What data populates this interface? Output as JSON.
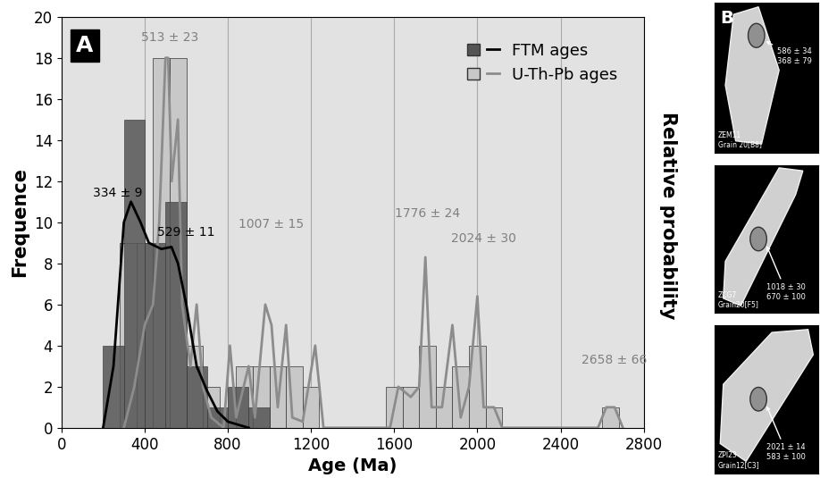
{
  "chart_data": {
    "type": "histogram",
    "panel_label": "A",
    "x_label": "Age (Ma)",
    "y_label": "Frequence",
    "y2_label": "Relative probability",
    "xlim": [
      0,
      2800
    ],
    "xticks": [
      0,
      400,
      800,
      1200,
      1600,
      2000,
      2400,
      2800
    ],
    "ylim": [
      0,
      20
    ],
    "yticks": [
      0,
      2,
      4,
      6,
      8,
      10,
      12,
      14,
      16,
      18,
      20
    ],
    "grid": "x",
    "legend": "upper right",
    "series": [
      {
        "name": "U-Th-Pb ages",
        "color": "#c8c8c8",
        "line_color": "#8c8c8c",
        "bins": [
          280,
          360,
          440,
          520,
          600,
          680,
          760,
          840,
          920,
          1000,
          1080,
          1160,
          1240,
          1320,
          1400,
          1480,
          1560,
          1640,
          1720,
          1800,
          1880,
          1960,
          2040,
          2120,
          2200,
          2280,
          2360,
          2440,
          2520,
          2600,
          2680
        ],
        "values": [
          9,
          9,
          18,
          18,
          4,
          2,
          0,
          3,
          3,
          3,
          3,
          2,
          0,
          0,
          0,
          0,
          2,
          2,
          4,
          2,
          3,
          4,
          1,
          0,
          0,
          0,
          0,
          0,
          0,
          1
        ],
        "curve": {
          "x": [
            300,
            350,
            400,
            440,
            470,
            500,
            513,
            530,
            560,
            580,
            620,
            650,
            680,
            720,
            780,
            810,
            840,
            900,
            930,
            980,
            1010,
            1040,
            1080,
            1110,
            1160,
            1220,
            1260,
            1580,
            1620,
            1680,
            1720,
            1750,
            1780,
            1830,
            1880,
            1920,
            1960,
            2000,
            2030,
            2080,
            2120,
            2580,
            2620,
            2660,
            2700
          ],
          "y": [
            0,
            2,
            5,
            6,
            10,
            18,
            18,
            12,
            15,
            6,
            3,
            6,
            2,
            0.5,
            0,
            4,
            0.5,
            3,
            0.5,
            6,
            5,
            1,
            5,
            0.5,
            0.3,
            4,
            0,
            0,
            2,
            1.5,
            2,
            8.3,
            1,
            1,
            5,
            0.5,
            2,
            6.4,
            1,
            1,
            0,
            0,
            1,
            1,
            0
          ]
        }
      },
      {
        "name": "FTM ages",
        "color": "#555555",
        "line_color": "#000000",
        "bins": [
          200,
          300,
          400,
          500,
          600,
          700,
          800,
          900,
          1000
        ],
        "values": [
          4,
          15,
          9,
          11,
          3,
          1,
          2,
          1
        ],
        "curve": {
          "x": [
            200,
            250,
            300,
            334,
            380,
            420,
            480,
            529,
            560,
            600,
            650,
            700,
            750,
            800,
            900
          ],
          "y": [
            0,
            3,
            10,
            11,
            10,
            9,
            8.7,
            8.8,
            8,
            6,
            3,
            1.8,
            0.8,
            0.3,
            0
          ]
        }
      }
    ],
    "annotations": [
      {
        "text": "334 ± 9",
        "x": 270,
        "y": 11.1,
        "color": "#000000"
      },
      {
        "text": "529 ± 11",
        "x": 600,
        "y": 9.2,
        "color": "#000000"
      },
      {
        "text": "513 ± 23",
        "x": 520,
        "y": 18.7,
        "color": "#808080"
      },
      {
        "text": "1007 ± 15",
        "x": 1010,
        "y": 9.6,
        "color": "#808080"
      },
      {
        "text": "1776 ± 24",
        "x": 1760,
        "y": 10.1,
        "color": "#808080"
      },
      {
        "text": "2024 ± 30",
        "x": 2030,
        "y": 8.9,
        "color": "#808080"
      },
      {
        "text": "2658 ± 66",
        "x": 2660,
        "y": 3.0,
        "color": "#808080"
      }
    ]
  },
  "panel_b": {
    "label": "B",
    "images": [
      {
        "sample": "ZEM11",
        "grain": "Grain 20[B8]",
        "ages": [
          "586 ± 34",
          "368 ± 79"
        ]
      },
      {
        "sample": "ZCG7",
        "grain": "Grain20[F5]",
        "ages": [
          "1018 ± 30",
          "670 ± 100"
        ]
      },
      {
        "sample": "ZPI23",
        "grain": "Grain12[C3]",
        "ages": [
          "2021 ± 14",
          "583 ± 100"
        ]
      }
    ]
  }
}
